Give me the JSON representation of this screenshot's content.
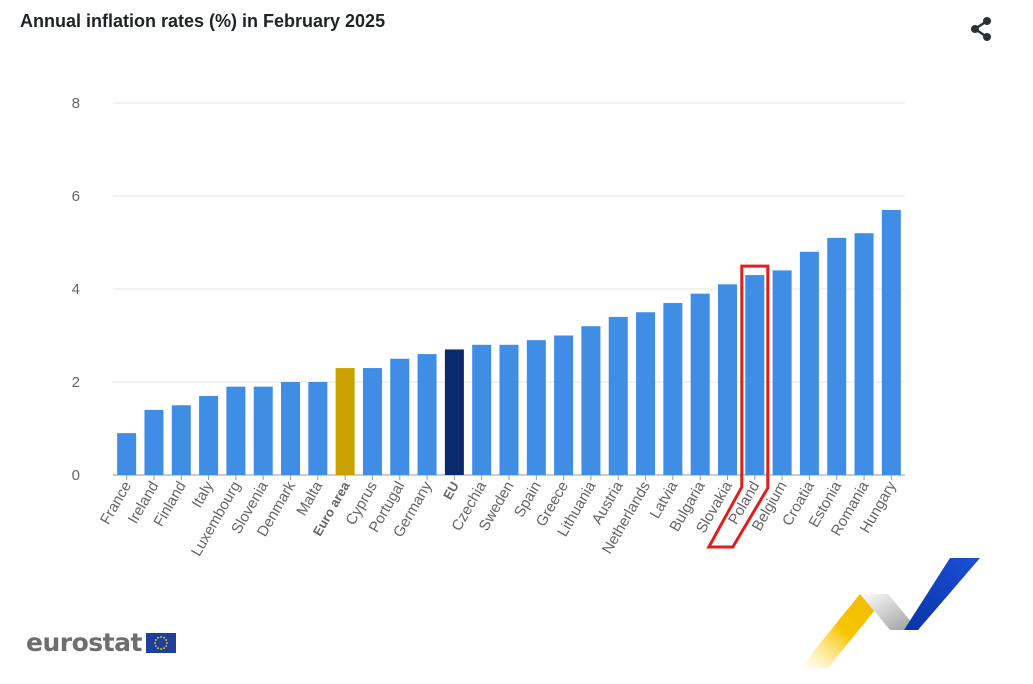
{
  "title": "Annual inflation rates (%) in February 2025",
  "share_icon": "share-icon",
  "logo": {
    "text": "eurostat",
    "icon": "eu-flag-icon"
  },
  "colors": {
    "bar": "#3f8de4",
    "euro_area": "#c9a100",
    "eu": "#0b2a6e",
    "grid": "#e6e6e6",
    "axis": "#999999",
    "tick_label": "#666666",
    "highlight": "#e11d1d"
  },
  "chart_data": {
    "type": "bar",
    "title": "Annual inflation rates (%) in February 2025",
    "xlabel": "",
    "ylabel": "",
    "ylim": [
      0,
      8
    ],
    "y_ticks": [
      "0",
      "2",
      "4",
      "6",
      "8"
    ],
    "grid": true,
    "legend": "none",
    "categories": [
      "France",
      "Ireland",
      "Finland",
      "Italy",
      "Luxembourg",
      "Slovenia",
      "Denmark",
      "Malta",
      "Euro area",
      "Cyprus",
      "Portugal",
      "Germany",
      "EU",
      "Czechia",
      "Sweden",
      "Spain",
      "Greece",
      "Lithuania",
      "Austria",
      "Netherlands",
      "Latvia",
      "Bulgaria",
      "Slovakia",
      "Poland",
      "Belgium",
      "Croatia",
      "Estonia",
      "Romania",
      "Hungary"
    ],
    "values": [
      0.9,
      1.4,
      1.5,
      1.7,
      1.9,
      1.9,
      2.0,
      2.0,
      2.3,
      2.3,
      2.5,
      2.6,
      2.7,
      2.8,
      2.8,
      2.9,
      3.0,
      3.2,
      3.4,
      3.5,
      3.7,
      3.9,
      4.1,
      4.3,
      4.4,
      4.8,
      5.1,
      5.2,
      5.7
    ],
    "bold_categories": [
      "Euro area",
      "EU"
    ],
    "highlighted_category": "Poland"
  }
}
